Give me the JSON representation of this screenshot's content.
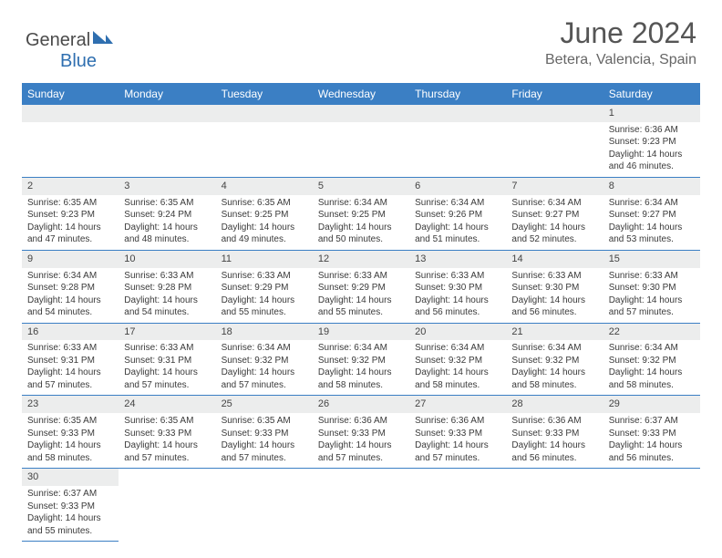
{
  "brand": {
    "name_a": "General",
    "name_b": "Blue"
  },
  "title": "June 2024",
  "location": "Betera, Valencia, Spain",
  "colors": {
    "header_bg": "#3b7fc4",
    "header_fg": "#ffffff",
    "daynum_bg": "#eceded",
    "rule": "#3b7fc4",
    "text": "#333333",
    "brand_gray": "#4a4a4a",
    "brand_blue": "#2f6fb0"
  },
  "typography": {
    "title_fontsize": 32,
    "location_fontsize": 16,
    "dayhead_fontsize": 12,
    "cell_fontsize": 10
  },
  "day_headers": [
    "Sunday",
    "Monday",
    "Tuesday",
    "Wednesday",
    "Thursday",
    "Friday",
    "Saturday"
  ],
  "weeks": [
    [
      null,
      null,
      null,
      null,
      null,
      null,
      {
        "n": "1",
        "sr": "6:36 AM",
        "ss": "9:23 PM",
        "dl": "14 hours and 46 minutes."
      }
    ],
    [
      {
        "n": "2",
        "sr": "6:35 AM",
        "ss": "9:23 PM",
        "dl": "14 hours and 47 minutes."
      },
      {
        "n": "3",
        "sr": "6:35 AM",
        "ss": "9:24 PM",
        "dl": "14 hours and 48 minutes."
      },
      {
        "n": "4",
        "sr": "6:35 AM",
        "ss": "9:25 PM",
        "dl": "14 hours and 49 minutes."
      },
      {
        "n": "5",
        "sr": "6:34 AM",
        "ss": "9:25 PM",
        "dl": "14 hours and 50 minutes."
      },
      {
        "n": "6",
        "sr": "6:34 AM",
        "ss": "9:26 PM",
        "dl": "14 hours and 51 minutes."
      },
      {
        "n": "7",
        "sr": "6:34 AM",
        "ss": "9:27 PM",
        "dl": "14 hours and 52 minutes."
      },
      {
        "n": "8",
        "sr": "6:34 AM",
        "ss": "9:27 PM",
        "dl": "14 hours and 53 minutes."
      }
    ],
    [
      {
        "n": "9",
        "sr": "6:34 AM",
        "ss": "9:28 PM",
        "dl": "14 hours and 54 minutes."
      },
      {
        "n": "10",
        "sr": "6:33 AM",
        "ss": "9:28 PM",
        "dl": "14 hours and 54 minutes."
      },
      {
        "n": "11",
        "sr": "6:33 AM",
        "ss": "9:29 PM",
        "dl": "14 hours and 55 minutes."
      },
      {
        "n": "12",
        "sr": "6:33 AM",
        "ss": "9:29 PM",
        "dl": "14 hours and 55 minutes."
      },
      {
        "n": "13",
        "sr": "6:33 AM",
        "ss": "9:30 PM",
        "dl": "14 hours and 56 minutes."
      },
      {
        "n": "14",
        "sr": "6:33 AM",
        "ss": "9:30 PM",
        "dl": "14 hours and 56 minutes."
      },
      {
        "n": "15",
        "sr": "6:33 AM",
        "ss": "9:30 PM",
        "dl": "14 hours and 57 minutes."
      }
    ],
    [
      {
        "n": "16",
        "sr": "6:33 AM",
        "ss": "9:31 PM",
        "dl": "14 hours and 57 minutes."
      },
      {
        "n": "17",
        "sr": "6:33 AM",
        "ss": "9:31 PM",
        "dl": "14 hours and 57 minutes."
      },
      {
        "n": "18",
        "sr": "6:34 AM",
        "ss": "9:32 PM",
        "dl": "14 hours and 57 minutes."
      },
      {
        "n": "19",
        "sr": "6:34 AM",
        "ss": "9:32 PM",
        "dl": "14 hours and 58 minutes."
      },
      {
        "n": "20",
        "sr": "6:34 AM",
        "ss": "9:32 PM",
        "dl": "14 hours and 58 minutes."
      },
      {
        "n": "21",
        "sr": "6:34 AM",
        "ss": "9:32 PM",
        "dl": "14 hours and 58 minutes."
      },
      {
        "n": "22",
        "sr": "6:34 AM",
        "ss": "9:32 PM",
        "dl": "14 hours and 58 minutes."
      }
    ],
    [
      {
        "n": "23",
        "sr": "6:35 AM",
        "ss": "9:33 PM",
        "dl": "14 hours and 58 minutes."
      },
      {
        "n": "24",
        "sr": "6:35 AM",
        "ss": "9:33 PM",
        "dl": "14 hours and 57 minutes."
      },
      {
        "n": "25",
        "sr": "6:35 AM",
        "ss": "9:33 PM",
        "dl": "14 hours and 57 minutes."
      },
      {
        "n": "26",
        "sr": "6:36 AM",
        "ss": "9:33 PM",
        "dl": "14 hours and 57 minutes."
      },
      {
        "n": "27",
        "sr": "6:36 AM",
        "ss": "9:33 PM",
        "dl": "14 hours and 57 minutes."
      },
      {
        "n": "28",
        "sr": "6:36 AM",
        "ss": "9:33 PM",
        "dl": "14 hours and 56 minutes."
      },
      {
        "n": "29",
        "sr": "6:37 AM",
        "ss": "9:33 PM",
        "dl": "14 hours and 56 minutes."
      }
    ],
    [
      {
        "n": "30",
        "sr": "6:37 AM",
        "ss": "9:33 PM",
        "dl": "14 hours and 55 minutes."
      },
      null,
      null,
      null,
      null,
      null,
      null
    ]
  ],
  "labels": {
    "sunrise": "Sunrise: ",
    "sunset": "Sunset: ",
    "daylight": "Daylight: "
  }
}
